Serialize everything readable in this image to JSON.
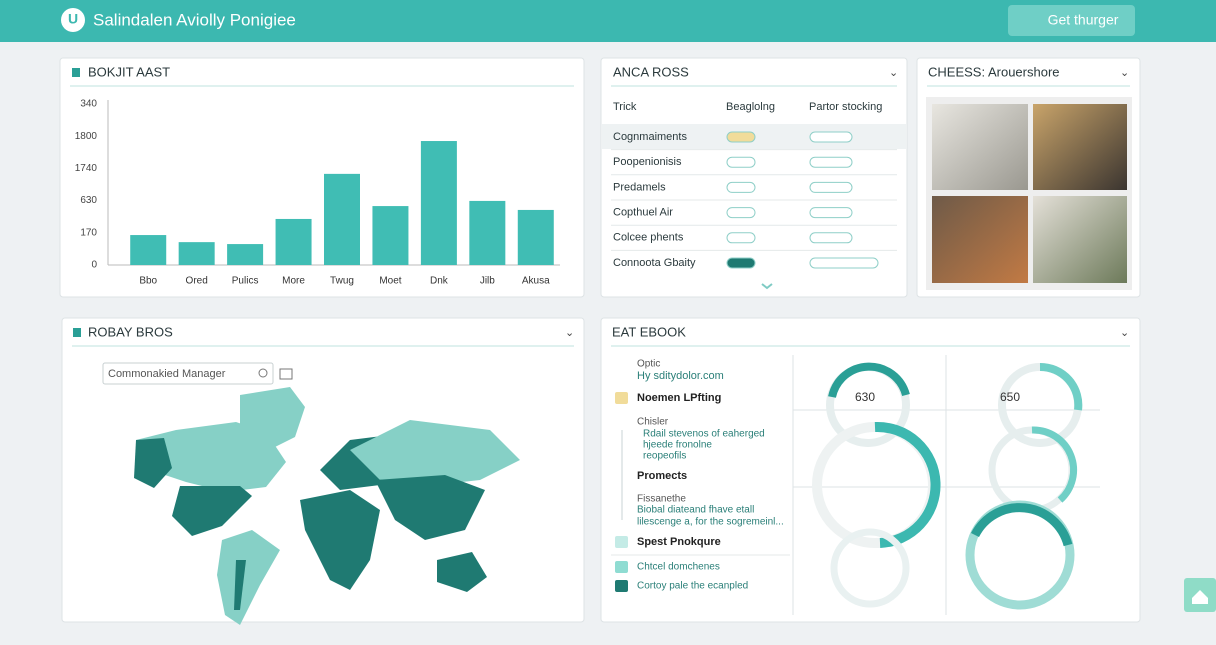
{
  "header": {
    "title": "Salindalen Aviolly Ponigiee",
    "button": "Get thurger"
  },
  "chart_data": {
    "type": "bar",
    "title": "BOKJIT AAST",
    "categories": [
      "Bbo",
      "Ored",
      "Pulics",
      "More",
      "Twug",
      "Moet",
      "Dnk",
      "Jilb",
      "Akusa"
    ],
    "values": [
      0.93,
      0.71,
      0.65,
      1.43,
      2.83,
      1.83,
      3.85,
      1.99,
      1.71
    ],
    "color": "#40bdb4",
    "ylim": [
      0,
      5
    ],
    "y_axis_labels": [
      "0",
      "170",
      "630",
      "1740",
      "1800",
      "340"
    ],
    "grid": true
  },
  "table": {
    "title": "ANCA ROSS",
    "columns": [
      "Trick",
      "Beaglolng",
      "Partor stocking"
    ],
    "rows": [
      "Cognmaiments",
      "Poopenionisis",
      "Predamels",
      "Copthuel Air",
      "Colcee phents",
      "Connoota Gbaity"
    ]
  },
  "photos": {
    "title": "CHEESS: Arouershore"
  },
  "map": {
    "title": "ROBAY BROS",
    "search": "Commonakied Manager"
  },
  "ebook": {
    "title": "EAT EBOOK",
    "items": [
      "Optic",
      "Hy sditydolor.com",
      "Noemen LPfting",
      "Chisler",
      "Rdail stevenos of eaherged",
      "hjeede fronolne",
      "reopeofils",
      "Promects",
      "Fissanethe",
      "Biobal diateand fhave etall",
      "lilescenge a, for the sogremeinl...",
      "Spest Pnokqure",
      "Chtcel domchenes",
      "Cortoy pale the ecanpled"
    ],
    "donut_labels": [
      "630",
      "650"
    ]
  }
}
